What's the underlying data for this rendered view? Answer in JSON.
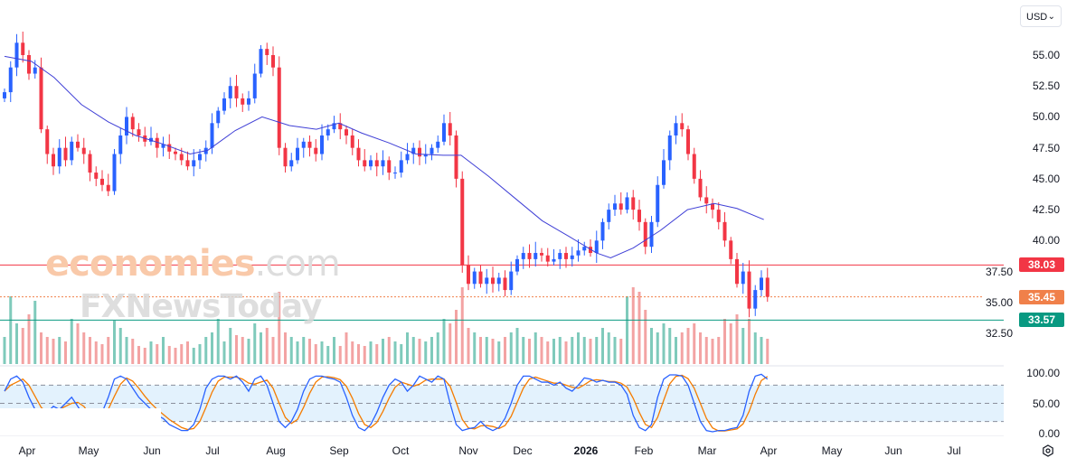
{
  "currency_selector": {
    "label": "USD"
  },
  "watermark": {
    "line1_a": "economies",
    "line1_b": ".com",
    "line2": "FXNewsToday"
  },
  "price_axis": {
    "labels": [
      "55.00",
      "52.50",
      "50.00",
      "47.50",
      "45.00",
      "42.50",
      "40.00",
      "37.50",
      "35.00",
      "32.50"
    ]
  },
  "oscillator_axis": {
    "labels": [
      "100.00",
      "50.00",
      "0.00"
    ]
  },
  "time_axis": {
    "labels": [
      "Apr",
      "May",
      "Jun",
      "Jul",
      "Aug",
      "Sep",
      "Oct",
      "Nov",
      "Dec",
      "2026",
      "Feb",
      "Mar",
      "Apr",
      "May",
      "Jun",
      "Jul"
    ]
  },
  "price_lines": [
    {
      "label": "38.03",
      "value": 38.03,
      "color": "#f23645",
      "style": "solid"
    },
    {
      "label": "35.45",
      "value": 35.45,
      "color": "#f0804a",
      "style": "dotted"
    },
    {
      "label": "33.57",
      "value": 33.57,
      "color": "#089981",
      "style": "solid"
    }
  ],
  "colors": {
    "up": "#2962ff",
    "down": "#f23645",
    "ma": "#3f3fd6",
    "vol_up": "#7fcabb",
    "vol_down": "#f3a3a3",
    "stoch_k": "#2962ff",
    "stoch_d": "#f57c00",
    "band": "#e3f2fd"
  },
  "chart_data": {
    "type": "candlestick",
    "x_range": [
      "2025-04",
      "2026-07"
    ],
    "ylim": [
      31,
      57
    ],
    "close": [
      52,
      54,
      56,
      55,
      53.5,
      54,
      49,
      47,
      46,
      47.5,
      46.5,
      48,
      47.5,
      47,
      45.5,
      45,
      44.5,
      44,
      47,
      48.5,
      50,
      49,
      48.5,
      48,
      48.3,
      47.5,
      47.8,
      47.2,
      47,
      46.5,
      46,
      46.5,
      47,
      47.5,
      49.5,
      50.5,
      51.5,
      52.5,
      51.5,
      51,
      51.5,
      53.5,
      55.5,
      55,
      54,
      47.5,
      46,
      46.5,
      47.5,
      48,
      47.5,
      47,
      48.5,
      49,
      49.5,
      49,
      48.5,
      47.5,
      46.5,
      46,
      46.5,
      46,
      46.5,
      45.5,
      45.5,
      46.5,
      47,
      47.5,
      46.8,
      47,
      47.5,
      48,
      49.5,
      48.5,
      45,
      38,
      36.5,
      37.5,
      36.5,
      37,
      36.5,
      37,
      36,
      37.5,
      38.5,
      39,
      38.5,
      39,
      38.8,
      38.3,
      38.5,
      39,
      38.5,
      38.8,
      39.2,
      39.5,
      39,
      40,
      41.5,
      42.5,
      43,
      42.5,
      43.5,
      42.5,
      41.5,
      39.5,
      41.5,
      44.5,
      46.5,
      48.5,
      49.5,
      49,
      47,
      45,
      43.5,
      43,
      42.5,
      41.5,
      40,
      38.5,
      36.5,
      37.5,
      34.5,
      36,
      37,
      35.45
    ],
    "moving_average": [
      [
        0,
        54.9
      ],
      [
        4.4,
        54.5
      ],
      [
        8.1,
        53.2
      ],
      [
        12.6,
        51
      ],
      [
        17,
        49.6
      ],
      [
        21.5,
        48.5
      ],
      [
        26,
        47.8
      ],
      [
        30.4,
        47
      ],
      [
        33.3,
        47.3
      ],
      [
        37.8,
        48.9
      ],
      [
        42.2,
        50
      ],
      [
        46.7,
        49.3
      ],
      [
        51.1,
        49
      ],
      [
        54.8,
        49.5
      ],
      [
        58.5,
        48.7
      ],
      [
        63,
        47.9
      ],
      [
        67.4,
        47
      ],
      [
        71.9,
        46.9
      ],
      [
        74.8,
        46.9
      ],
      [
        79.3,
        45.2
      ],
      [
        83.7,
        43.4
      ],
      [
        88.1,
        41.6
      ],
      [
        92.6,
        40.3
      ],
      [
        97,
        39
      ],
      [
        99.3,
        38.6
      ],
      [
        103,
        39.4
      ],
      [
        107.4,
        40.8
      ],
      [
        111.9,
        42.5
      ],
      [
        116.3,
        43
      ],
      [
        120,
        42.6
      ],
      [
        124.4,
        41.7
      ]
    ],
    "volume": [
      30,
      75,
      45,
      40,
      55,
      70,
      35,
      30,
      28,
      30,
      25,
      50,
      45,
      35,
      30,
      25,
      22,
      30,
      48,
      40,
      30,
      28,
      20,
      18,
      25,
      22,
      30,
      20,
      18,
      22,
      25,
      18,
      22,
      30,
      35,
      50,
      25,
      40,
      32,
      30,
      28,
      45,
      35,
      40,
      30,
      80,
      35,
      30,
      25,
      30,
      28,
      22,
      25,
      20,
      30,
      20,
      35,
      25,
      22,
      20,
      25,
      22,
      28,
      30,
      25,
      22,
      35,
      30,
      28,
      25,
      30,
      35,
      50,
      45,
      60,
      85,
      40,
      35,
      30,
      30,
      28,
      25,
      30,
      35,
      40,
      30,
      28,
      35,
      30,
      25,
      28,
      30,
      25,
      30,
      35,
      30,
      28,
      30,
      40,
      35,
      30,
      28,
      75,
      85,
      80,
      60,
      40,
      35,
      45,
      40,
      30,
      35,
      40,
      45,
      35,
      30,
      28,
      30,
      50,
      45,
      55,
      40,
      50,
      35,
      30,
      28
    ],
    "stochastic_k": [
      70,
      90,
      95,
      85,
      60,
      40,
      30,
      35,
      45,
      40,
      50,
      60,
      45,
      30,
      20,
      25,
      35,
      60,
      90,
      95,
      90,
      75,
      60,
      50,
      40,
      30,
      25,
      15,
      10,
      5,
      5,
      15,
      40,
      75,
      90,
      95,
      95,
      90,
      95,
      85,
      70,
      90,
      95,
      80,
      50,
      20,
      10,
      20,
      40,
      70,
      90,
      95,
      95,
      92,
      90,
      85,
      60,
      30,
      10,
      5,
      15,
      35,
      60,
      80,
      90,
      85,
      70,
      80,
      95,
      90,
      85,
      95,
      90,
      50,
      15,
      5,
      8,
      10,
      20,
      10,
      5,
      10,
      25,
      50,
      80,
      95,
      95,
      90,
      85,
      85,
      80,
      85,
      75,
      70,
      80,
      92,
      90,
      85,
      88,
      85,
      85,
      80,
      65,
      30,
      10,
      5,
      15,
      60,
      90,
      97,
      97,
      95,
      80,
      50,
      20,
      5,
      3,
      5,
      5,
      8,
      10,
      30,
      70,
      95,
      98,
      90
    ],
    "stochastic_levels": [
      80,
      50,
      20
    ],
    "oscillator_ylim": [
      0,
      100
    ]
  }
}
